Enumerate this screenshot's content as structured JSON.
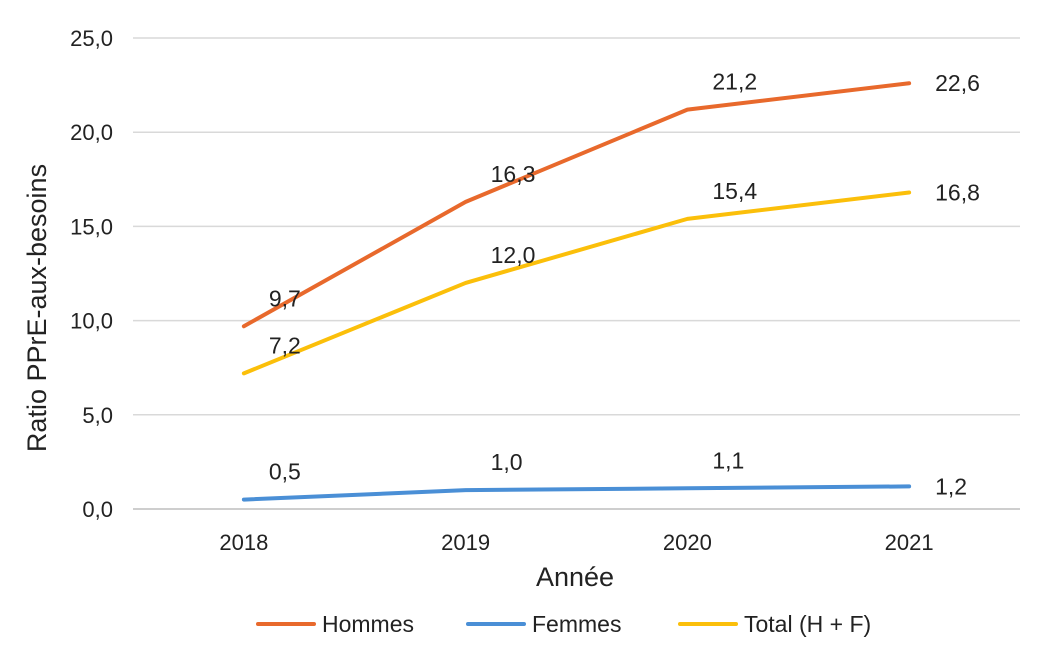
{
  "chart_data": {
    "type": "line",
    "title": "",
    "xlabel": "Année",
    "ylabel": "Ratio PPrE-aux-besoins",
    "categories": [
      "2018",
      "2019",
      "2020",
      "2021"
    ],
    "ylim": [
      0,
      25
    ],
    "ytick_labels": [
      "0,0",
      "5,0",
      "10,0",
      "15,0",
      "20,0",
      "25,0"
    ],
    "grid": true,
    "legend_position": "bottom",
    "series": [
      {
        "name": "Hommes",
        "color": "#E8692C",
        "values": [
          9.7,
          16.3,
          21.2,
          22.6
        ],
        "labels": [
          "9,7",
          "16,3",
          "21,2",
          "22,6"
        ]
      },
      {
        "name": "Femmes",
        "color": "#4A8FD6",
        "values": [
          0.5,
          1.0,
          1.1,
          1.2
        ],
        "labels": [
          "0,5",
          "1,0",
          "1,1",
          "1,2"
        ]
      },
      {
        "name": "Total (H + F)",
        "color": "#FBBF0A",
        "values": [
          7.2,
          12.0,
          15.4,
          16.8
        ],
        "labels": [
          "7,2",
          "12,0",
          "15,4",
          "16,8"
        ]
      }
    ]
  }
}
